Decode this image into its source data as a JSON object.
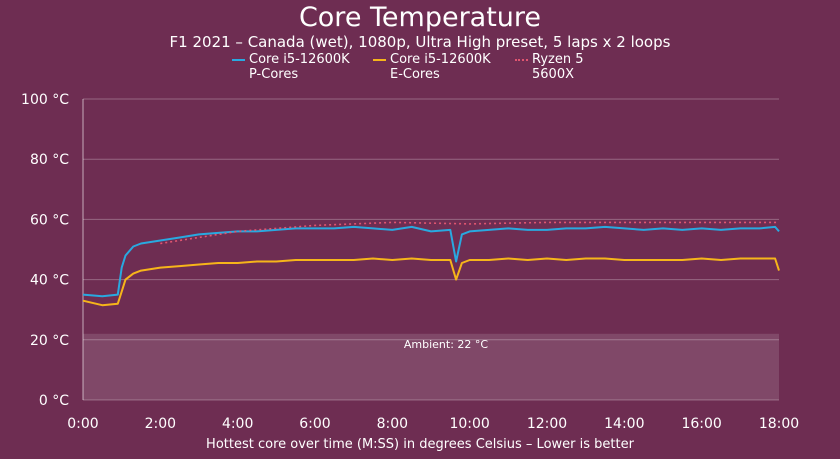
{
  "chart_data": {
    "type": "line",
    "title": "Core Temperature",
    "subtitle": "F1 2021 – Canada (wet), 1080p, Ultra High preset, 5 laps x 2 loops",
    "xlabel": "Hottest core over time (M:SS) in degrees Celsius – Lower is better",
    "ylabel": "",
    "x_ticks": [
      "0:00",
      "2:00",
      "4:00",
      "6:00",
      "8:00",
      "10:00",
      "12:00",
      "14:00",
      "16:00",
      "18:00"
    ],
    "x_tick_minutes": [
      0,
      2,
      4,
      6,
      8,
      10,
      12,
      14,
      16,
      18
    ],
    "xlim_minutes": [
      0,
      18
    ],
    "y_ticks": [
      "0 °C",
      "20 °C",
      "40 °C",
      "60 °C",
      "80 °C",
      "100 °C"
    ],
    "y_tick_values": [
      0,
      20,
      40,
      60,
      80,
      100
    ],
    "ylim": [
      0,
      100
    ],
    "grid": true,
    "ambient": {
      "value": 22,
      "label": "Ambient: 22 °C"
    },
    "series": [
      {
        "name": "Core i5-12600K P-Cores",
        "name_lines": [
          "Core i5-12600K",
          "P-Cores"
        ],
        "color": "#29a9e0",
        "style": "solid",
        "x": [
          0,
          0.5,
          0.9,
          1,
          1.1,
          1.3,
          1.5,
          2,
          2.5,
          3,
          3.5,
          4,
          4.5,
          5,
          5.5,
          6,
          6.5,
          7,
          7.5,
          8,
          8.5,
          9,
          9.5,
          9.65,
          9.8,
          10,
          10.5,
          11,
          11.5,
          12,
          12.5,
          13,
          13.5,
          14,
          14.5,
          15,
          15.5,
          16,
          16.5,
          17,
          17.5,
          17.9,
          18
        ],
        "values": [
          35,
          34.5,
          35,
          44,
          48,
          51,
          52,
          53,
          54,
          55,
          55.5,
          56,
          56,
          56.5,
          57,
          57,
          57,
          57.5,
          57,
          56.5,
          57.5,
          56,
          56.5,
          46,
          55,
          56,
          56.5,
          57,
          56.5,
          56.5,
          57,
          57,
          57.5,
          57,
          56.5,
          57,
          56.5,
          57,
          56.5,
          57,
          57,
          57.5,
          56
        ]
      },
      {
        "name": "Core i5-12600K E-Cores",
        "name_lines": [
          "Core i5-12600K",
          "E-Cores"
        ],
        "color": "#f6b51a",
        "style": "solid",
        "x": [
          0,
          0.5,
          0.9,
          1,
          1.1,
          1.3,
          1.5,
          2,
          2.5,
          3,
          3.5,
          4,
          4.5,
          5,
          5.5,
          6,
          6.5,
          7,
          7.5,
          8,
          8.5,
          9,
          9.5,
          9.65,
          9.8,
          10,
          10.5,
          11,
          11.5,
          12,
          12.5,
          13,
          13.5,
          14,
          14.5,
          15,
          15.5,
          16,
          16.5,
          17,
          17.5,
          17.9,
          18
        ],
        "values": [
          33,
          31.5,
          32,
          36,
          40,
          42,
          43,
          44,
          44.5,
          45,
          45.5,
          45.5,
          46,
          46,
          46.5,
          46.5,
          46.5,
          46.5,
          47,
          46.5,
          47,
          46.5,
          46.5,
          40,
          45.5,
          46.5,
          46.5,
          47,
          46.5,
          47,
          46.5,
          47,
          47,
          46.5,
          46.5,
          46.5,
          46.5,
          47,
          46.5,
          47,
          47,
          47,
          43
        ]
      },
      {
        "name": "Ryzen 5 5600X",
        "name_lines": [
          "Ryzen 5",
          "5600X"
        ],
        "color": "#e05570",
        "style": "dotted",
        "x": [
          2,
          4,
          6,
          8,
          10,
          12,
          14,
          16,
          18
        ],
        "values": [
          52,
          56,
          58,
          59,
          58.5,
          59,
          59,
          59,
          59
        ]
      }
    ]
  }
}
